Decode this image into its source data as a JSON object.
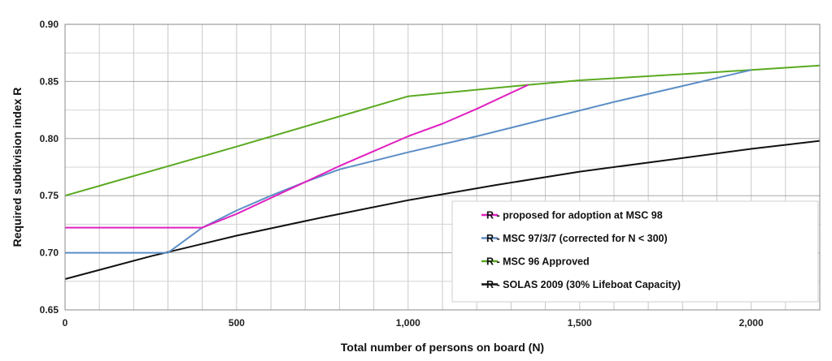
{
  "chart_data": {
    "type": "line",
    "xlabel": "Total number of persons on board (N)",
    "ylabel": "Required subdivision index   R",
    "xlim": [
      0,
      2200
    ],
    "ylim": [
      0.65,
      0.9
    ],
    "x_ticks": [
      0,
      500,
      1000,
      1500,
      2000
    ],
    "x_tick_labels": [
      "0",
      "500",
      "1,000",
      "1,500",
      "2,000"
    ],
    "y_ticks": [
      0.65,
      0.7,
      0.75,
      0.8,
      0.85,
      0.9
    ],
    "y_tick_labels": [
      "0.65",
      "0.70",
      "0.75",
      "0.80",
      "0.85",
      "0.90"
    ],
    "grid": true,
    "minor_x_grid_step": 100,
    "legend_position": "bottom-right",
    "series": [
      {
        "name": "R - proposed for adoption at MSC 98",
        "color": "#e020c0",
        "points": [
          [
            0,
            0.722
          ],
          [
            400,
            0.722
          ],
          [
            500,
            0.734
          ],
          [
            600,
            0.748
          ],
          [
            700,
            0.762
          ],
          [
            800,
            0.776
          ],
          [
            900,
            0.789
          ],
          [
            1000,
            0.802
          ],
          [
            1100,
            0.813
          ],
          [
            1200,
            0.826
          ],
          [
            1350,
            0.847
          ]
        ]
      },
      {
        "name": "R - MSC 97/3/7 (corrected for N < 300)",
        "color": "#5b8ec6",
        "points": [
          [
            0,
            0.7
          ],
          [
            300,
            0.7
          ],
          [
            400,
            0.722
          ],
          [
            500,
            0.737
          ],
          [
            600,
            0.75
          ],
          [
            700,
            0.762
          ],
          [
            800,
            0.773
          ],
          [
            1000,
            0.788
          ],
          [
            1200,
            0.802
          ],
          [
            1400,
            0.817
          ],
          [
            1600,
            0.832
          ],
          [
            1800,
            0.846
          ],
          [
            2000,
            0.86
          ]
        ]
      },
      {
        "name": "R - MSC 96 Approved",
        "color": "#5aaa20",
        "points": [
          [
            0,
            0.75
          ],
          [
            500,
            0.793
          ],
          [
            1000,
            0.837
          ],
          [
            1350,
            0.847
          ],
          [
            1500,
            0.851
          ],
          [
            2000,
            0.86
          ],
          [
            2200,
            0.864
          ]
        ]
      },
      {
        "name": "R - SOLAS 2009 (30% Lifeboat Capacity)",
        "color": "#111111",
        "points": [
          [
            0,
            0.677
          ],
          [
            250,
            0.697
          ],
          [
            500,
            0.715
          ],
          [
            750,
            0.731
          ],
          [
            1000,
            0.746
          ],
          [
            1250,
            0.759
          ],
          [
            1500,
            0.771
          ],
          [
            1750,
            0.781
          ],
          [
            2000,
            0.791
          ],
          [
            2200,
            0.798
          ]
        ]
      }
    ]
  }
}
